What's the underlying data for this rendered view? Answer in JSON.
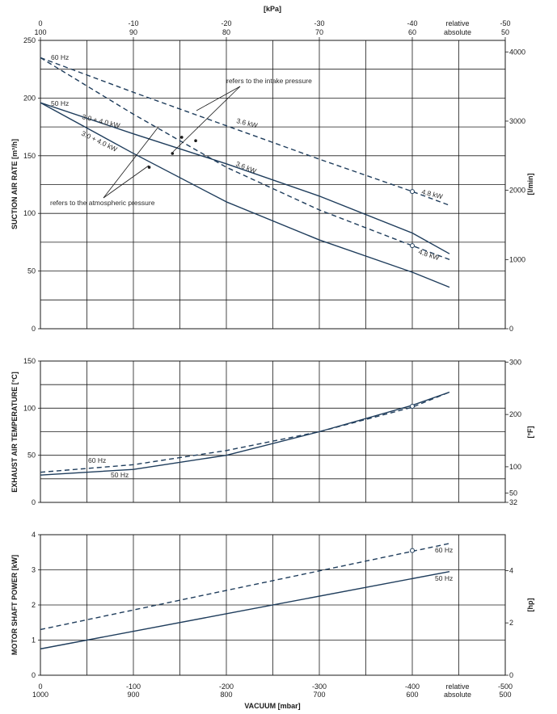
{
  "colors": {
    "curve": "#1f3d5c",
    "grid": "#1a1a1a",
    "text": "#1a1a1a"
  },
  "top_axis": {
    "title": "[kPa]",
    "kpa": [
      "0",
      "-10",
      "-20",
      "-30",
      "-40",
      "-50"
    ],
    "absolute": [
      "100",
      "90",
      "80",
      "70",
      "60",
      "50"
    ],
    "relative_label": "relative",
    "absolute_label": "absolute"
  },
  "bottom_axis": {
    "title": "VACUUM  [mbar]",
    "mbar": [
      "0",
      "-100",
      "-200",
      "-300",
      "-400",
      "-500"
    ],
    "absolute": [
      "1000",
      "900",
      "800",
      "700",
      "600",
      "500"
    ],
    "relative_label": "relative",
    "absolute_label": "absolute"
  },
  "chart_data": [
    {
      "type": "line",
      "title": "SUCTION AIR RATE",
      "ylabel": "SUCTION AIR RATE  [m³/h]",
      "y2label": "[l/min]",
      "xlim": [
        0,
        -500
      ],
      "ylim": [
        0,
        250
      ],
      "yticks": [
        "0",
        "50",
        "100",
        "150",
        "200",
        "250"
      ],
      "y2ticks": [
        "0",
        "1000",
        "2000",
        "3000",
        "4000"
      ],
      "series": [
        {
          "name": "60 Hz intake",
          "style": "dashed",
          "x": [
            0,
            -100,
            -200,
            -300,
            -400,
            -440
          ],
          "y": [
            235,
            205,
            176,
            147,
            119,
            107
          ]
        },
        {
          "name": "60 Hz atmospheric",
          "style": "dashed",
          "x": [
            0,
            -100,
            -200,
            -300,
            -400,
            -440
          ],
          "y": [
            235,
            186,
            140,
            103,
            72,
            60
          ]
        },
        {
          "name": "50 Hz intake",
          "style": "solid",
          "x": [
            0,
            -100,
            -200,
            -300,
            -400,
            -440
          ],
          "y": [
            196,
            169,
            143,
            115,
            83,
            65
          ]
        },
        {
          "name": "50 Hz atmospheric",
          "style": "solid",
          "x": [
            0,
            -100,
            -200,
            -300,
            -400,
            -440
          ],
          "y": [
            196,
            152,
            110,
            77,
            49,
            36
          ]
        }
      ],
      "annotations": {
        "hz60": "60 Hz",
        "hz50": "50 Hz",
        "intake": "refers to the intake pressure",
        "atmospheric": "refers to the atmospheric pressure",
        "kw36_a": "3.6 kW",
        "kw36_b": "3.6 kW",
        "kw48_a": "4.8 kW",
        "kw48_b": "4.8 kW",
        "kw3040_a": "3.0 + 4.0 kW",
        "kw3040_b": "3.0 + 4.0 kW"
      }
    },
    {
      "type": "line",
      "title": "EXHAUST AIR TEMPERATURE",
      "ylabel": "EXHAUST AIR TEMPERATURE  [°C]",
      "y2label": "[°F]",
      "xlim": [
        0,
        -500
      ],
      "ylim": [
        0,
        150
      ],
      "yticks": [
        "0",
        "50",
        "100",
        "150"
      ],
      "y2ticks": [
        "32",
        "50",
        "100",
        "200",
        "300"
      ],
      "series": [
        {
          "name": "60 Hz",
          "style": "dashed",
          "x": [
            0,
            -100,
            -200,
            -300,
            -400,
            -440
          ],
          "y": [
            32,
            40,
            55,
            75,
            101,
            117
          ]
        },
        {
          "name": "50 Hz",
          "style": "solid",
          "x": [
            0,
            -100,
            -200,
            -300,
            -400,
            -440
          ],
          "y": [
            29,
            35,
            50,
            75,
            103,
            117
          ]
        }
      ],
      "annotations": {
        "hz60": "60 Hz",
        "hz50": "50 Hz"
      }
    },
    {
      "type": "line",
      "title": "MOTOR SHAFT POWER",
      "ylabel": "MOTOR SHAFT POWER  [kW]",
      "y2label": "[hp]",
      "xlim": [
        0,
        -500
      ],
      "ylim": [
        0,
        4
      ],
      "yticks": [
        "0",
        "1",
        "2",
        "3",
        "4"
      ],
      "y2ticks": [
        "0",
        "2",
        "4"
      ],
      "series": [
        {
          "name": "60 Hz",
          "style": "dashed",
          "x": [
            0,
            -440
          ],
          "y": [
            1.3,
            3.75
          ]
        },
        {
          "name": "50 Hz",
          "style": "solid",
          "x": [
            0,
            -440
          ],
          "y": [
            0.75,
            2.95
          ]
        }
      ],
      "annotations": {
        "hz60": "60 Hz",
        "hz50": "50 Hz"
      }
    }
  ]
}
